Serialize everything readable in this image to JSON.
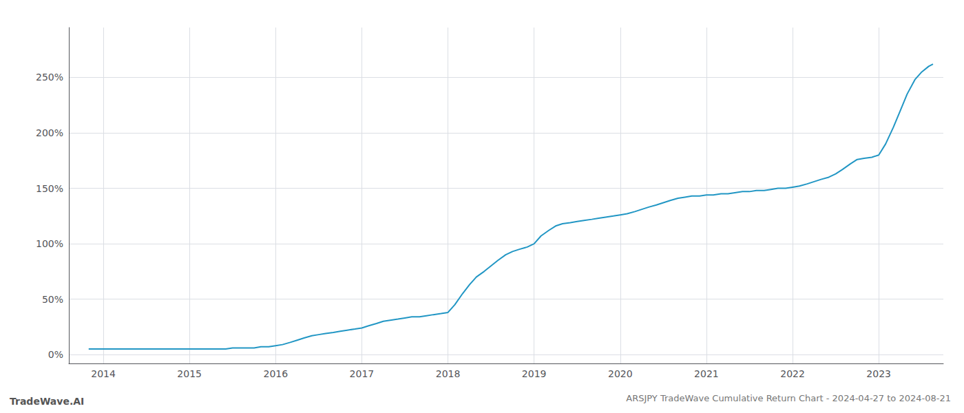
{
  "chart_data": {
    "type": "line",
    "title": "ARSJPY TradeWave Cumulative Return Chart - 2024-04-27 to 2024-08-21",
    "annotations": [
      "TradeWave.AI"
    ],
    "color": "#2196c4",
    "x": [
      2013.83,
      2014.0,
      2014.08,
      2014.17,
      2014.25,
      2014.33,
      2014.42,
      2014.5,
      2014.58,
      2014.67,
      2014.75,
      2014.83,
      2014.92,
      2015.0,
      2015.08,
      2015.17,
      2015.25,
      2015.33,
      2015.42,
      2015.5,
      2015.58,
      2015.67,
      2015.75,
      2015.83,
      2015.92,
      2016.0,
      2016.08,
      2016.17,
      2016.25,
      2016.33,
      2016.42,
      2016.5,
      2016.58,
      2016.67,
      2016.75,
      2016.83,
      2016.92,
      2017.0,
      2017.08,
      2017.17,
      2017.25,
      2017.33,
      2017.42,
      2017.5,
      2017.58,
      2017.67,
      2017.75,
      2017.83,
      2017.92,
      2018.0,
      2018.08,
      2018.17,
      2018.25,
      2018.33,
      2018.42,
      2018.5,
      2018.58,
      2018.67,
      2018.75,
      2018.83,
      2018.92,
      2019.0,
      2019.08,
      2019.17,
      2019.25,
      2019.33,
      2019.42,
      2019.5,
      2019.58,
      2019.67,
      2019.75,
      2019.83,
      2019.92,
      2020.0,
      2020.08,
      2020.17,
      2020.25,
      2020.33,
      2020.42,
      2020.5,
      2020.58,
      2020.67,
      2020.75,
      2020.83,
      2020.92,
      2021.0,
      2021.08,
      2021.17,
      2021.25,
      2021.33,
      2021.42,
      2021.5,
      2021.58,
      2021.67,
      2021.75,
      2021.83,
      2021.92,
      2022.0,
      2022.08,
      2022.17,
      2022.25,
      2022.33,
      2022.42,
      2022.5,
      2022.58,
      2022.67,
      2022.75,
      2022.83,
      2022.92,
      2023.0,
      2023.08,
      2023.17,
      2023.25,
      2023.33,
      2023.42,
      2023.5,
      2023.58,
      2023.63
    ],
    "values": [
      5,
      5,
      5,
      5,
      5,
      5,
      5,
      5,
      5,
      5,
      5,
      5,
      5,
      5,
      5,
      5,
      5,
      5,
      5,
      6,
      6,
      6,
      6,
      7,
      7,
      8,
      9,
      11,
      13,
      15,
      17,
      18,
      19,
      20,
      21,
      22,
      23,
      24,
      26,
      28,
      30,
      31,
      32,
      33,
      34,
      34,
      35,
      36,
      37,
      38,
      45,
      55,
      63,
      70,
      75,
      80,
      85,
      90,
      93,
      95,
      97,
      100,
      107,
      112,
      116,
      118,
      119,
      120,
      121,
      122,
      123,
      124,
      125,
      126,
      127,
      129,
      131,
      133,
      135,
      137,
      139,
      141,
      142,
      143,
      143,
      144,
      144,
      145,
      145,
      146,
      147,
      147,
      148,
      148,
      149,
      150,
      150,
      151,
      152,
      154,
      156,
      158,
      160,
      163,
      167,
      172,
      176,
      177,
      178,
      180,
      190,
      205,
      220,
      235,
      248,
      255,
      260,
      262
    ],
    "xlim": [
      2013.6,
      2023.75
    ],
    "xticks": [
      2014,
      2015,
      2016,
      2017,
      2018,
      2019,
      2020,
      2021,
      2022,
      2023
    ],
    "ylim": [
      -8,
      295
    ],
    "yticks": [
      {
        "value": 0,
        "label": "0%"
      },
      {
        "value": 50,
        "label": "50%"
      },
      {
        "value": 100,
        "label": "100%"
      },
      {
        "value": 150,
        "label": "150%"
      },
      {
        "value": 200,
        "label": "200%"
      },
      {
        "value": 250,
        "label": "250%"
      }
    ],
    "grid": true
  }
}
